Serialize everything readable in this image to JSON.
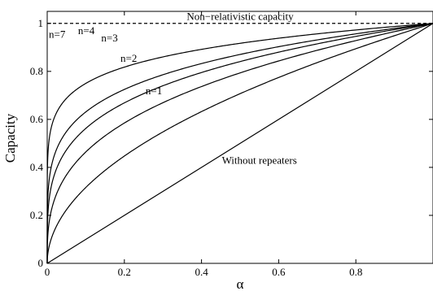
{
  "chart_data": {
    "type": "line",
    "xlabel": "α",
    "ylabel": "Capacity",
    "xlim": [
      0,
      1
    ],
    "ylim": [
      0,
      1.05
    ],
    "xticks": [
      "0",
      "0.2",
      "0.4",
      "0.6",
      "0.8"
    ],
    "yticks": [
      "0",
      "0.2",
      "0.4",
      "0.6",
      "0.8",
      "1"
    ],
    "grid": false,
    "series": [
      {
        "name": "Non−relativistic capacity",
        "style": "dashed",
        "x": [
          0,
          1
        ],
        "y": [
          1,
          1
        ]
      },
      {
        "name": "n=7",
        "style": "solid",
        "n": 7
      },
      {
        "name": "n=4",
        "style": "solid",
        "n": 4
      },
      {
        "name": "n=3",
        "style": "solid",
        "n": 3
      },
      {
        "name": "n=2",
        "style": "solid",
        "n": 2
      },
      {
        "name": "n=1",
        "style": "solid",
        "n": 1
      },
      {
        "name": "Without repeaters",
        "style": "solid",
        "x": [
          0,
          1
        ],
        "y": [
          0,
          1
        ]
      }
    ]
  }
}
